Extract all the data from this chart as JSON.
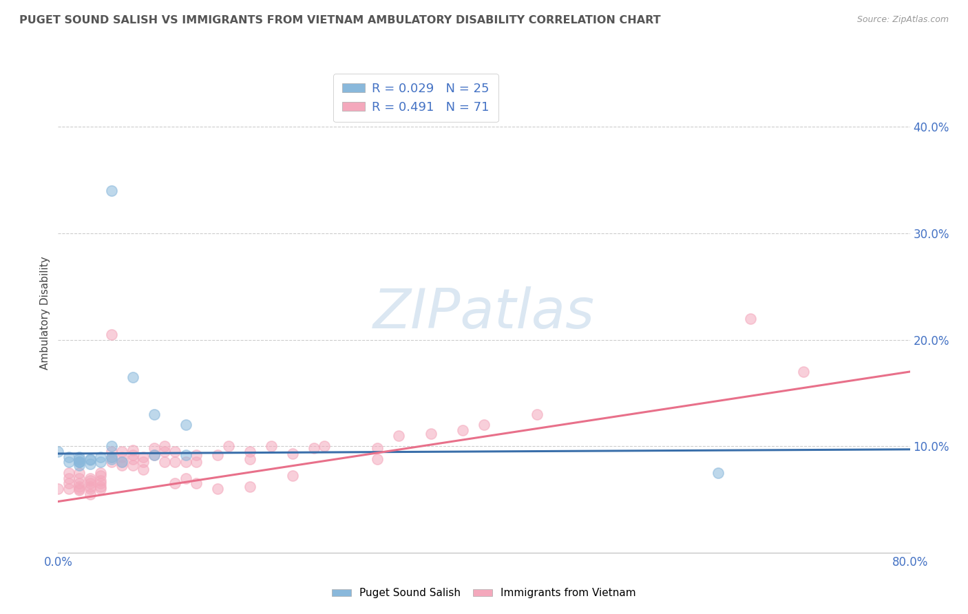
{
  "title": "PUGET SOUND SALISH VS IMMIGRANTS FROM VIETNAM AMBULATORY DISABILITY CORRELATION CHART",
  "source": "Source: ZipAtlas.com",
  "ylabel": "Ambulatory Disability",
  "xlim": [
    0.0,
    0.8
  ],
  "ylim": [
    0.0,
    0.45
  ],
  "yticks": [
    0.0,
    0.1,
    0.2,
    0.3,
    0.4
  ],
  "ytick_labels": [
    "",
    "10.0%",
    "20.0%",
    "30.0%",
    "40.0%"
  ],
  "xticks": [
    0.0,
    0.1,
    0.2,
    0.3,
    0.4,
    0.5,
    0.6,
    0.7,
    0.8
  ],
  "xtick_labels": [
    "0.0%",
    "",
    "",
    "",
    "",
    "",
    "",
    "",
    "80.0%"
  ],
  "legend_label1": "R = 0.029   N = 25",
  "legend_label2": "R = 0.491   N = 71",
  "color_blue": "#89b8db",
  "color_pink": "#f4a8bc",
  "line_color_blue": "#3a6faa",
  "line_color_pink": "#e8708a",
  "watermark": "ZIPatlas",
  "blue_scatter_x": [
    0.05,
    0.0,
    0.01,
    0.01,
    0.02,
    0.02,
    0.02,
    0.02,
    0.02,
    0.02,
    0.03,
    0.03,
    0.03,
    0.04,
    0.04,
    0.05,
    0.05,
    0.05,
    0.06,
    0.07,
    0.09,
    0.09,
    0.12,
    0.12,
    0.62
  ],
  "blue_scatter_y": [
    0.34,
    0.095,
    0.09,
    0.085,
    0.088,
    0.085,
    0.082,
    0.085,
    0.09,
    0.085,
    0.087,
    0.088,
    0.083,
    0.085,
    0.09,
    0.088,
    0.09,
    0.1,
    0.085,
    0.165,
    0.13,
    0.092,
    0.12,
    0.092,
    0.075
  ],
  "pink_scatter_x": [
    0.0,
    0.01,
    0.01,
    0.01,
    0.01,
    0.02,
    0.02,
    0.02,
    0.02,
    0.02,
    0.02,
    0.03,
    0.03,
    0.03,
    0.03,
    0.03,
    0.03,
    0.04,
    0.04,
    0.04,
    0.04,
    0.04,
    0.04,
    0.05,
    0.05,
    0.05,
    0.05,
    0.06,
    0.06,
    0.06,
    0.06,
    0.07,
    0.07,
    0.07,
    0.07,
    0.08,
    0.08,
    0.08,
    0.09,
    0.09,
    0.1,
    0.1,
    0.1,
    0.11,
    0.11,
    0.11,
    0.12,
    0.12,
    0.13,
    0.13,
    0.13,
    0.15,
    0.15,
    0.16,
    0.18,
    0.18,
    0.18,
    0.2,
    0.22,
    0.22,
    0.24,
    0.25,
    0.3,
    0.3,
    0.32,
    0.35,
    0.38,
    0.4,
    0.45,
    0.65,
    0.7
  ],
  "pink_scatter_y": [
    0.06,
    0.075,
    0.07,
    0.065,
    0.06,
    0.075,
    0.07,
    0.065,
    0.06,
    0.062,
    0.059,
    0.07,
    0.068,
    0.065,
    0.062,
    0.06,
    0.055,
    0.075,
    0.072,
    0.068,
    0.065,
    0.062,
    0.06,
    0.205,
    0.095,
    0.09,
    0.085,
    0.095,
    0.09,
    0.085,
    0.082,
    0.096,
    0.092,
    0.088,
    0.082,
    0.09,
    0.085,
    0.078,
    0.098,
    0.092,
    0.1,
    0.095,
    0.085,
    0.095,
    0.085,
    0.065,
    0.085,
    0.07,
    0.092,
    0.085,
    0.065,
    0.092,
    0.06,
    0.1,
    0.095,
    0.088,
    0.062,
    0.1,
    0.093,
    0.072,
    0.098,
    0.1,
    0.098,
    0.088,
    0.11,
    0.112,
    0.115,
    0.12,
    0.13,
    0.22,
    0.17
  ],
  "blue_line_x": [
    0.0,
    0.8
  ],
  "blue_line_y": [
    0.093,
    0.097
  ],
  "pink_line_x": [
    0.0,
    0.8
  ],
  "pink_line_y": [
    0.048,
    0.17
  ],
  "background_color": "#ffffff",
  "grid_color": "#cccccc",
  "title_color": "#555555",
  "legend_text_color": "#4472c4",
  "tick_color": "#4472c4"
}
